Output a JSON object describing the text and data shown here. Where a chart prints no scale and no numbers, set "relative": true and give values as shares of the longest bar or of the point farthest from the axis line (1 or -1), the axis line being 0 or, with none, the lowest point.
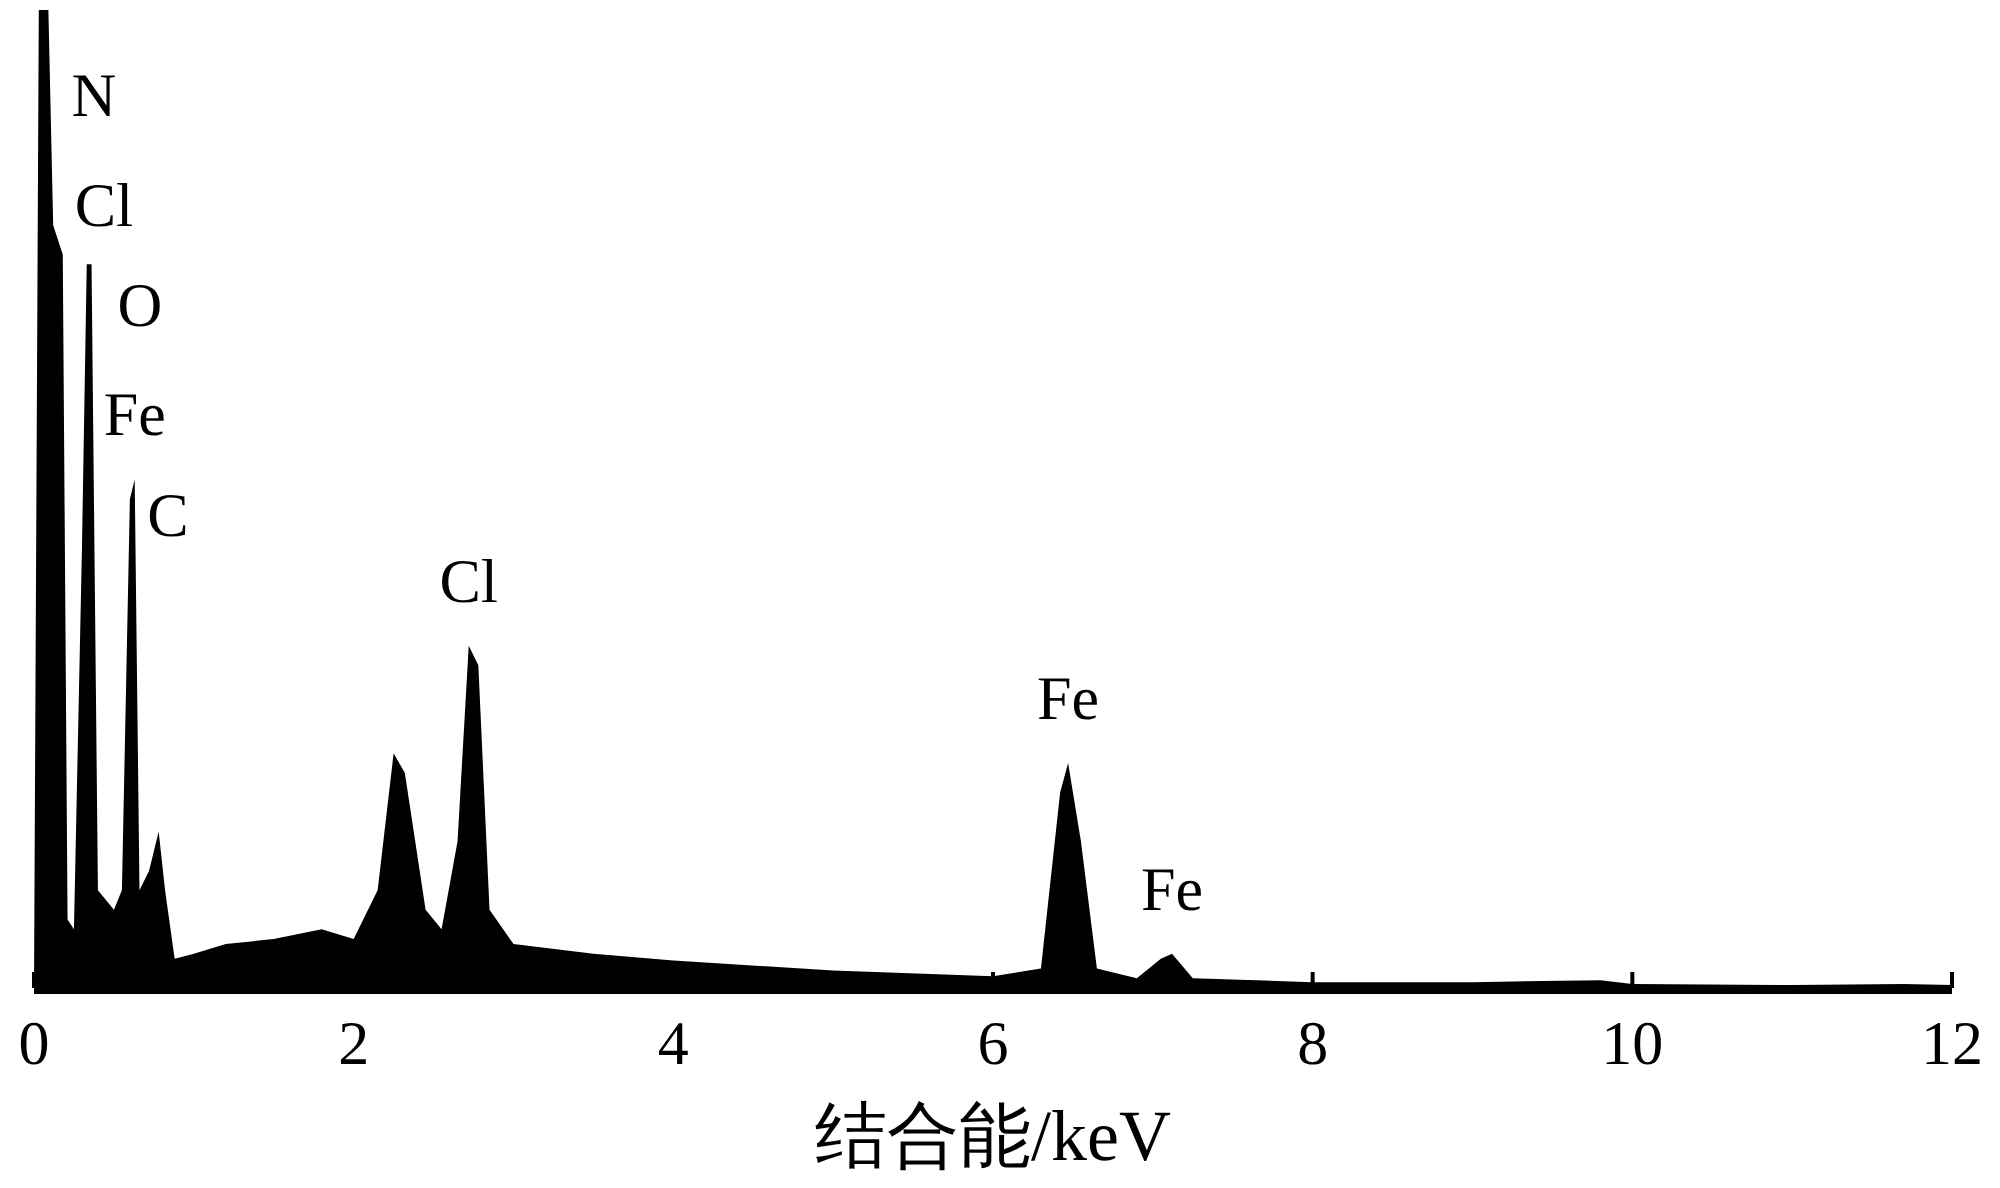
{
  "chart_data": {
    "type": "area",
    "relative": true,
    "color": "#000000",
    "xlabel": "结合能/keV",
    "xlim": [
      0,
      12
    ],
    "xticks": [
      0,
      2,
      4,
      6,
      8,
      10,
      12
    ],
    "x": [
      0,
      0.03,
      0.09,
      0.12,
      0.18,
      0.21,
      0.25,
      0.3,
      0.33,
      0.36,
      0.4,
      0.45,
      0.5,
      0.55,
      0.6,
      0.63,
      0.66,
      0.72,
      0.78,
      0.82,
      0.88,
      1.0,
      1.2,
      1.5,
      1.8,
      2.0,
      2.15,
      2.25,
      2.32,
      2.45,
      2.55,
      2.65,
      2.72,
      2.78,
      2.85,
      3.0,
      3.5,
      4.0,
      5.0,
      6.0,
      6.3,
      6.42,
      6.47,
      6.55,
      6.65,
      6.9,
      7.05,
      7.12,
      7.25,
      8.0,
      9.0,
      9.8,
      10.0,
      11.0,
      11.7,
      12.0
    ],
    "values": [
      0,
      1.0,
      1.0,
      0.78,
      0.75,
      0.07,
      0.06,
      0.45,
      0.74,
      0.74,
      0.1,
      0.09,
      0.08,
      0.1,
      0.5,
      0.52,
      0.1,
      0.12,
      0.16,
      0.1,
      0.03,
      0.035,
      0.045,
      0.05,
      0.06,
      0.05,
      0.1,
      0.24,
      0.22,
      0.08,
      0.06,
      0.15,
      0.35,
      0.33,
      0.08,
      0.045,
      0.035,
      0.028,
      0.018,
      0.012,
      0.02,
      0.2,
      0.23,
      0.15,
      0.02,
      0.01,
      0.03,
      0.035,
      0.01,
      0.006,
      0.006,
      0.008,
      0.004,
      0.003,
      0.004,
      0.003
    ],
    "annotations": [
      "N",
      "Cl",
      "O",
      {
        "text": "Fe",
        "x": 0.63,
        "y": 0.52
      },
      "C",
      {
        "text": "Cl",
        "x": 2.72,
        "y": 0.35
      },
      {
        "text": "Fe",
        "x": 6.47,
        "y": 0.23
      },
      {
        "text": "Fe",
        "x": 7.12,
        "y": 0.035
      }
    ]
  }
}
